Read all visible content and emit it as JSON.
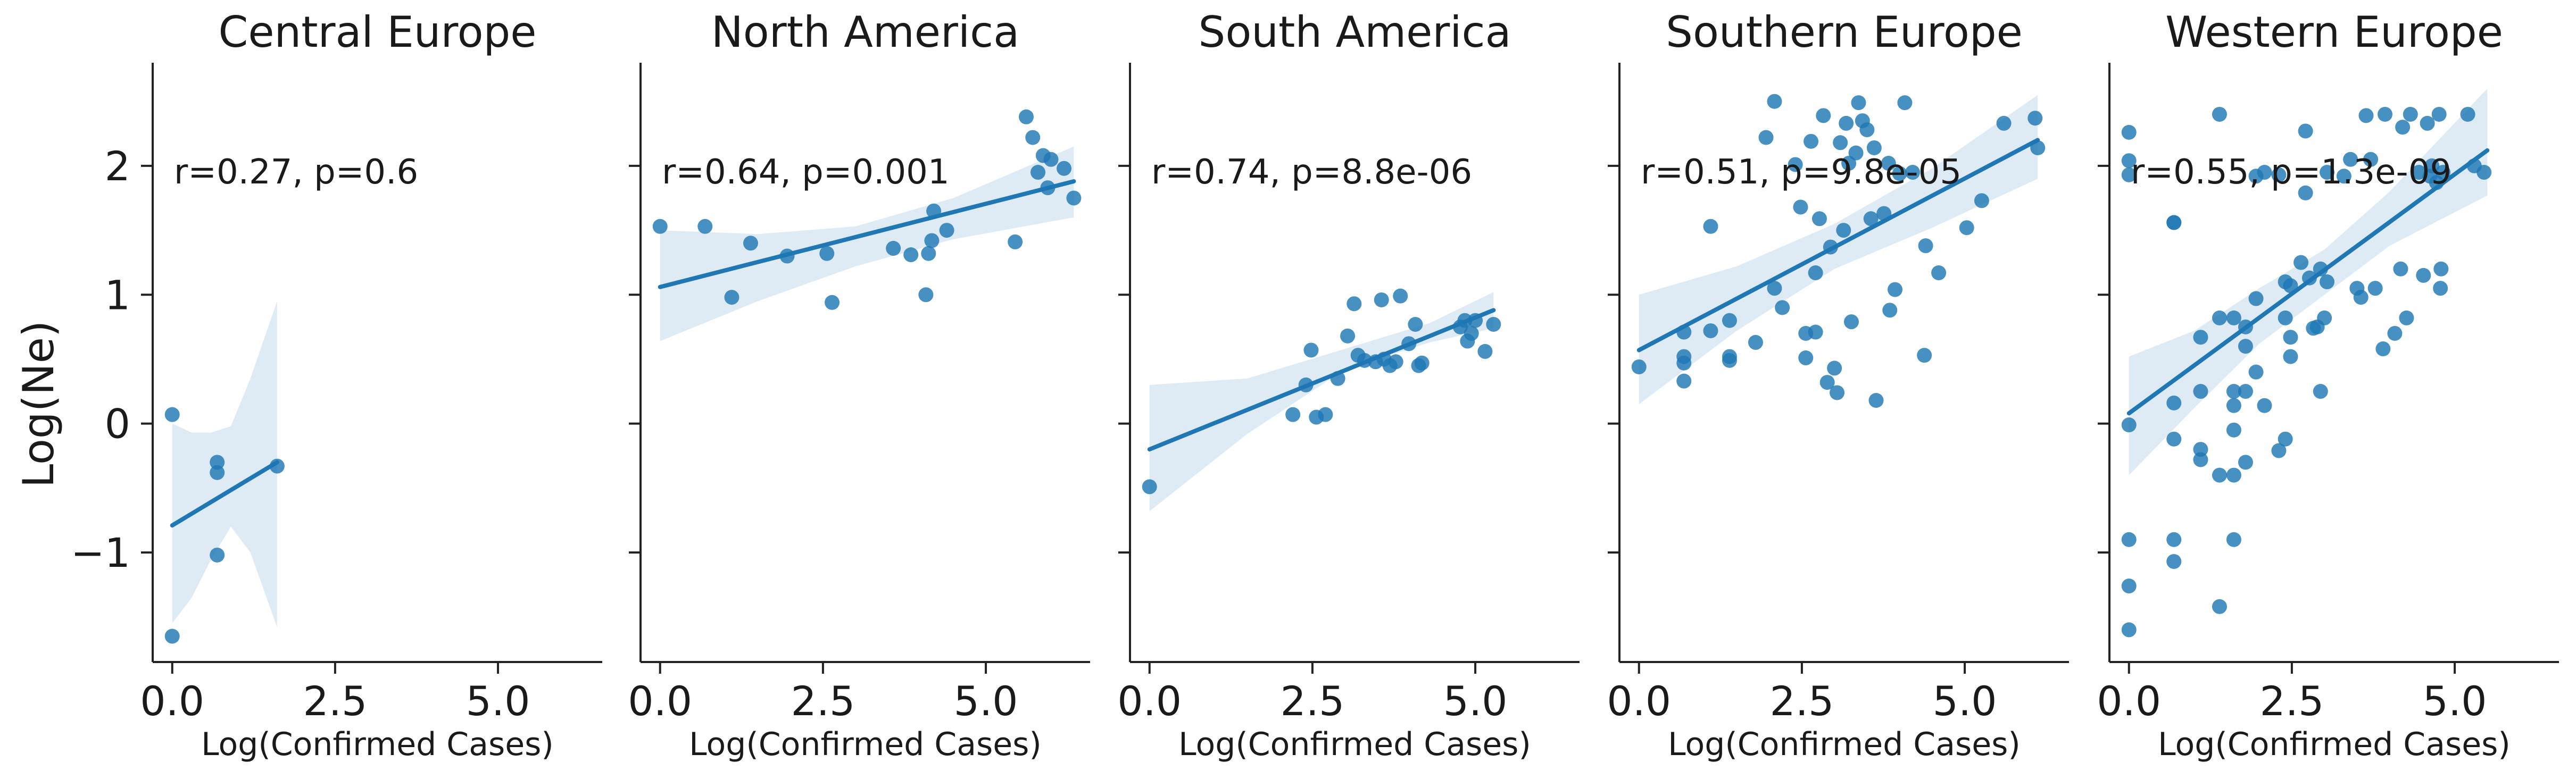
{
  "figure": {
    "ylabel": "Log(Ne)",
    "xlabel": "Log(Confirmed Cases)",
    "colors": {
      "points": "#1f77b4",
      "line": "#1f77b4",
      "band": "#1f77b4",
      "axes": "#222222"
    }
  },
  "chart_data": [
    {
      "type": "scatter",
      "title": "Central Europe",
      "annotation": "r=0.27, p=0.6",
      "xlabel": "Log(Confirmed Cases)",
      "ylabel": "Log(Ne)",
      "xlim": [
        -0.3,
        6.6
      ],
      "ylim": [
        -1.85,
        2.8
      ],
      "x_ticks": [
        0.0,
        2.5,
        5.0
      ],
      "x_tick_labels": [
        "0.0",
        "2.5",
        "5.0"
      ],
      "y_ticks": [
        -1,
        0,
        1,
        2
      ],
      "y_tick_labels": [
        "−1",
        "0",
        "1",
        "2"
      ],
      "points": [
        [
          0.0,
          0.07
        ],
        [
          0.69,
          -0.3
        ],
        [
          0.69,
          -0.38
        ],
        [
          0.69,
          -1.02
        ],
        [
          1.61,
          -0.33
        ],
        [
          0.0,
          -1.65
        ]
      ],
      "fit": {
        "x": [
          0.0,
          1.61
        ],
        "y": [
          -0.79,
          -0.3
        ]
      },
      "ci": {
        "x": [
          0.0,
          0.3,
          0.6,
          0.9,
          1.2,
          1.61
        ],
        "upper": [
          0.0,
          -0.07,
          -0.07,
          -0.02,
          0.35,
          0.95
        ],
        "lower": [
          -1.55,
          -1.35,
          -1.05,
          -0.8,
          -1.0,
          -1.58
        ]
      }
    },
    {
      "type": "scatter",
      "title": "North America",
      "annotation": "r=0.64, p=0.001",
      "xlabel": "Log(Confirmed Cases)",
      "ylabel": "",
      "xlim": [
        -0.3,
        6.6
      ],
      "ylim": [
        -1.85,
        2.8
      ],
      "x_ticks": [
        0.0,
        2.5,
        5.0
      ],
      "x_tick_labels": [
        "0.0",
        "2.5",
        "5.0"
      ],
      "y_ticks": [
        -1,
        0,
        1,
        2
      ],
      "y_tick_labels": [],
      "points": [
        [
          0.0,
          1.53
        ],
        [
          0.69,
          1.53
        ],
        [
          1.1,
          0.98
        ],
        [
          1.39,
          1.4
        ],
        [
          1.95,
          1.3
        ],
        [
          2.56,
          1.32
        ],
        [
          2.64,
          0.94
        ],
        [
          3.58,
          1.36
        ],
        [
          3.85,
          1.31
        ],
        [
          4.08,
          1.0
        ],
        [
          4.12,
          1.32
        ],
        [
          4.17,
          1.42
        ],
        [
          4.2,
          1.65
        ],
        [
          4.4,
          1.5
        ],
        [
          5.45,
          1.41
        ],
        [
          5.62,
          2.38
        ],
        [
          5.72,
          2.22
        ],
        [
          5.8,
          1.95
        ],
        [
          5.88,
          2.08
        ],
        [
          5.95,
          1.83
        ],
        [
          6.0,
          2.05
        ],
        [
          6.2,
          1.98
        ],
        [
          6.35,
          1.75
        ]
      ],
      "fit": {
        "x": [
          0.0,
          6.35
        ],
        "y": [
          1.06,
          1.88
        ]
      },
      "ci": {
        "x": [
          0.0,
          1.5,
          3.0,
          4.5,
          6.35
        ],
        "upper": [
          1.5,
          1.47,
          1.53,
          1.75,
          2.15
        ],
        "lower": [
          0.64,
          0.95,
          1.22,
          1.43,
          1.6
        ]
      }
    },
    {
      "type": "scatter",
      "title": "South America",
      "annotation": "r=0.74, p=8.8e-06",
      "xlabel": "Log(Confirmed Cases)",
      "ylabel": "",
      "xlim": [
        -0.3,
        6.6
      ],
      "ylim": [
        -1.85,
        2.8
      ],
      "x_ticks": [
        0.0,
        2.5,
        5.0
      ],
      "x_tick_labels": [
        "0.0",
        "2.5",
        "5.0"
      ],
      "y_ticks": [
        -1,
        0,
        1,
        2
      ],
      "y_tick_labels": [],
      "points": [
        [
          0.0,
          -0.49
        ],
        [
          2.2,
          0.07
        ],
        [
          2.4,
          0.3
        ],
        [
          2.48,
          0.57
        ],
        [
          2.56,
          0.05
        ],
        [
          2.7,
          0.07
        ],
        [
          2.89,
          0.35
        ],
        [
          3.04,
          0.68
        ],
        [
          3.14,
          0.93
        ],
        [
          3.2,
          0.53
        ],
        [
          3.3,
          0.49
        ],
        [
          3.47,
          0.48
        ],
        [
          3.56,
          0.96
        ],
        [
          3.6,
          0.5
        ],
        [
          3.69,
          0.45
        ],
        [
          3.78,
          0.48
        ],
        [
          3.85,
          0.99
        ],
        [
          3.98,
          0.62
        ],
        [
          4.08,
          0.77
        ],
        [
          4.13,
          0.45
        ],
        [
          4.18,
          0.47
        ],
        [
          4.77,
          0.75
        ],
        [
          4.84,
          0.8
        ],
        [
          4.88,
          0.64
        ],
        [
          4.94,
          0.7
        ],
        [
          5.0,
          0.8
        ],
        [
          5.15,
          0.56
        ],
        [
          5.28,
          0.77
        ]
      ],
      "fit": {
        "x": [
          0.0,
          5.28
        ],
        "y": [
          -0.2,
          0.88
        ]
      },
      "ci": {
        "x": [
          0.0,
          1.5,
          3.0,
          4.3,
          5.28
        ],
        "upper": [
          0.3,
          0.35,
          0.58,
          0.78,
          1.02
        ],
        "lower": [
          -0.68,
          -0.08,
          0.42,
          0.63,
          0.74
        ]
      }
    },
    {
      "type": "scatter",
      "title": "Southern Europe",
      "annotation": "r=0.51, p=9.8e-05",
      "xlabel": "Log(Confirmed Cases)",
      "ylabel": "",
      "xlim": [
        -0.3,
        6.6
      ],
      "ylim": [
        -1.85,
        2.8
      ],
      "x_ticks": [
        0.0,
        2.5,
        5.0
      ],
      "x_tick_labels": [
        "0.0",
        "2.5",
        "5.0"
      ],
      "y_ticks": [
        -1,
        0,
        1,
        2
      ],
      "y_tick_labels": [],
      "points": [
        [
          0.0,
          0.44
        ],
        [
          0.69,
          0.52
        ],
        [
          0.69,
          0.47
        ],
        [
          0.69,
          0.33
        ],
        [
          0.69,
          0.71
        ],
        [
          1.1,
          0.72
        ],
        [
          1.1,
          1.53
        ],
        [
          1.39,
          0.8
        ],
        [
          1.39,
          0.52
        ],
        [
          1.39,
          0.49
        ],
        [
          1.79,
          0.63
        ],
        [
          1.95,
          2.22
        ],
        [
          2.08,
          1.05
        ],
        [
          2.08,
          2.5
        ],
        [
          2.2,
          0.9
        ],
        [
          2.4,
          2.01
        ],
        [
          2.48,
          1.68
        ],
        [
          2.56,
          0.7
        ],
        [
          2.56,
          0.51
        ],
        [
          2.64,
          2.19
        ],
        [
          2.71,
          0.71
        ],
        [
          2.71,
          1.17
        ],
        [
          2.77,
          1.59
        ],
        [
          2.83,
          2.39
        ],
        [
          2.89,
          0.32
        ],
        [
          2.94,
          1.37
        ],
        [
          3.0,
          0.43
        ],
        [
          3.04,
          0.24
        ],
        [
          3.09,
          2.18
        ],
        [
          3.14,
          1.5
        ],
        [
          3.18,
          2.33
        ],
        [
          3.22,
          2.02
        ],
        [
          3.26,
          0.79
        ],
        [
          3.33,
          2.1
        ],
        [
          3.37,
          2.49
        ],
        [
          3.43,
          2.35
        ],
        [
          3.5,
          2.28
        ],
        [
          3.56,
          1.59
        ],
        [
          3.61,
          2.14
        ],
        [
          3.64,
          0.18
        ],
        [
          3.76,
          1.63
        ],
        [
          3.83,
          2.02
        ],
        [
          3.85,
          0.88
        ],
        [
          3.93,
          1.04
        ],
        [
          4.0,
          1.94
        ],
        [
          4.08,
          2.49
        ],
        [
          4.2,
          1.95
        ],
        [
          4.38,
          0.53
        ],
        [
          4.4,
          1.38
        ],
        [
          4.6,
          1.17
        ],
        [
          5.03,
          1.52
        ],
        [
          5.26,
          1.73
        ],
        [
          5.6,
          2.33
        ],
        [
          6.08,
          2.37
        ],
        [
          6.12,
          2.14
        ]
      ],
      "fit": {
        "x": [
          0.0,
          6.12
        ],
        "y": [
          0.57,
          2.2
        ]
      },
      "ci": {
        "x": [
          0.0,
          1.5,
          3.0,
          4.5,
          6.12
        ],
        "upper": [
          1.0,
          1.22,
          1.55,
          1.98,
          2.55
        ],
        "lower": [
          0.15,
          0.72,
          1.2,
          1.52,
          1.9
        ]
      }
    },
    {
      "type": "scatter",
      "title": "Western Europe",
      "annotation": "r=0.55, p=1.3e-09",
      "xlabel": "Log(Confirmed Cases)",
      "ylabel": "",
      "xlim": [
        -0.3,
        6.6
      ],
      "ylim": [
        -1.85,
        2.8
      ],
      "x_ticks": [
        0.0,
        2.5,
        5.0
      ],
      "x_tick_labels": [
        "0.0",
        "2.5",
        "5.0"
      ],
      "y_ticks": [
        -1,
        0,
        1,
        2
      ],
      "y_tick_labels": [],
      "points": [
        [
          0.0,
          2.26
        ],
        [
          0.0,
          2.04
        ],
        [
          0.0,
          1.93
        ],
        [
          0.0,
          -0.01
        ],
        [
          0.0,
          -0.9
        ],
        [
          0.0,
          -1.26
        ],
        [
          0.0,
          -1.6
        ],
        [
          0.69,
          1.56
        ],
        [
          0.69,
          1.56
        ],
        [
          0.69,
          0.16
        ],
        [
          0.69,
          -0.12
        ],
        [
          0.69,
          -0.9
        ],
        [
          0.69,
          -1.07
        ],
        [
          1.1,
          0.67
        ],
        [
          1.1,
          0.25
        ],
        [
          1.1,
          -0.2
        ],
        [
          1.1,
          -0.28
        ],
        [
          1.39,
          0.82
        ],
        [
          1.39,
          -0.4
        ],
        [
          1.39,
          -1.42
        ],
        [
          1.39,
          2.4
        ],
        [
          1.61,
          0.82
        ],
        [
          1.61,
          0.25
        ],
        [
          1.61,
          0.14
        ],
        [
          1.61,
          -0.05
        ],
        [
          1.61,
          -0.4
        ],
        [
          1.61,
          -0.9
        ],
        [
          1.79,
          0.75
        ],
        [
          1.79,
          0.6
        ],
        [
          1.79,
          0.25
        ],
        [
          1.79,
          -0.3
        ],
        [
          1.95,
          1.92
        ],
        [
          1.95,
          0.97
        ],
        [
          1.95,
          0.4
        ],
        [
          2.08,
          1.95
        ],
        [
          2.08,
          0.14
        ],
        [
          2.3,
          1.93
        ],
        [
          2.3,
          -0.21
        ],
        [
          2.4,
          0.82
        ],
        [
          2.4,
          1.1
        ],
        [
          2.4,
          -0.12
        ],
        [
          2.48,
          1.07
        ],
        [
          2.48,
          0.67
        ],
        [
          2.48,
          0.52
        ],
        [
          2.64,
          1.25
        ],
        [
          2.71,
          1.79
        ],
        [
          2.71,
          2.27
        ],
        [
          2.77,
          1.13
        ],
        [
          2.83,
          0.74
        ],
        [
          2.89,
          0.75
        ],
        [
          2.94,
          1.2
        ],
        [
          2.94,
          0.25
        ],
        [
          3.0,
          0.82
        ],
        [
          3.04,
          1.95
        ],
        [
          3.04,
          1.1
        ],
        [
          3.3,
          1.92
        ],
        [
          3.4,
          2.05
        ],
        [
          3.5,
          1.05
        ],
        [
          3.56,
          0.98
        ],
        [
          3.64,
          2.39
        ],
        [
          3.71,
          2.05
        ],
        [
          3.78,
          1.05
        ],
        [
          3.9,
          0.58
        ],
        [
          3.93,
          2.4
        ],
        [
          4.08,
          0.7
        ],
        [
          4.17,
          1.2
        ],
        [
          4.2,
          2.3
        ],
        [
          4.26,
          0.82
        ],
        [
          4.32,
          2.4
        ],
        [
          4.45,
          1.95
        ],
        [
          4.52,
          1.15
        ],
        [
          4.58,
          2.33
        ],
        [
          4.62,
          1.92
        ],
        [
          4.65,
          2.0
        ],
        [
          4.72,
          1.87
        ],
        [
          4.76,
          2.4
        ],
        [
          4.78,
          1.05
        ],
        [
          4.79,
          1.2
        ],
        [
          4.82,
          1.95
        ],
        [
          5.2,
          2.4
        ],
        [
          5.3,
          2.0
        ],
        [
          5.45,
          1.95
        ]
      ],
      "fit": {
        "x": [
          0.0,
          5.5
        ],
        "y": [
          0.08,
          2.12
        ]
      },
      "ci": {
        "x": [
          0.0,
          1.0,
          2.0,
          3.0,
          4.0,
          5.5
        ],
        "upper": [
          0.52,
          0.72,
          1.05,
          1.35,
          1.8,
          2.6
        ],
        "lower": [
          -0.4,
          0.12,
          0.62,
          1.0,
          1.38,
          1.77
        ]
      }
    }
  ]
}
